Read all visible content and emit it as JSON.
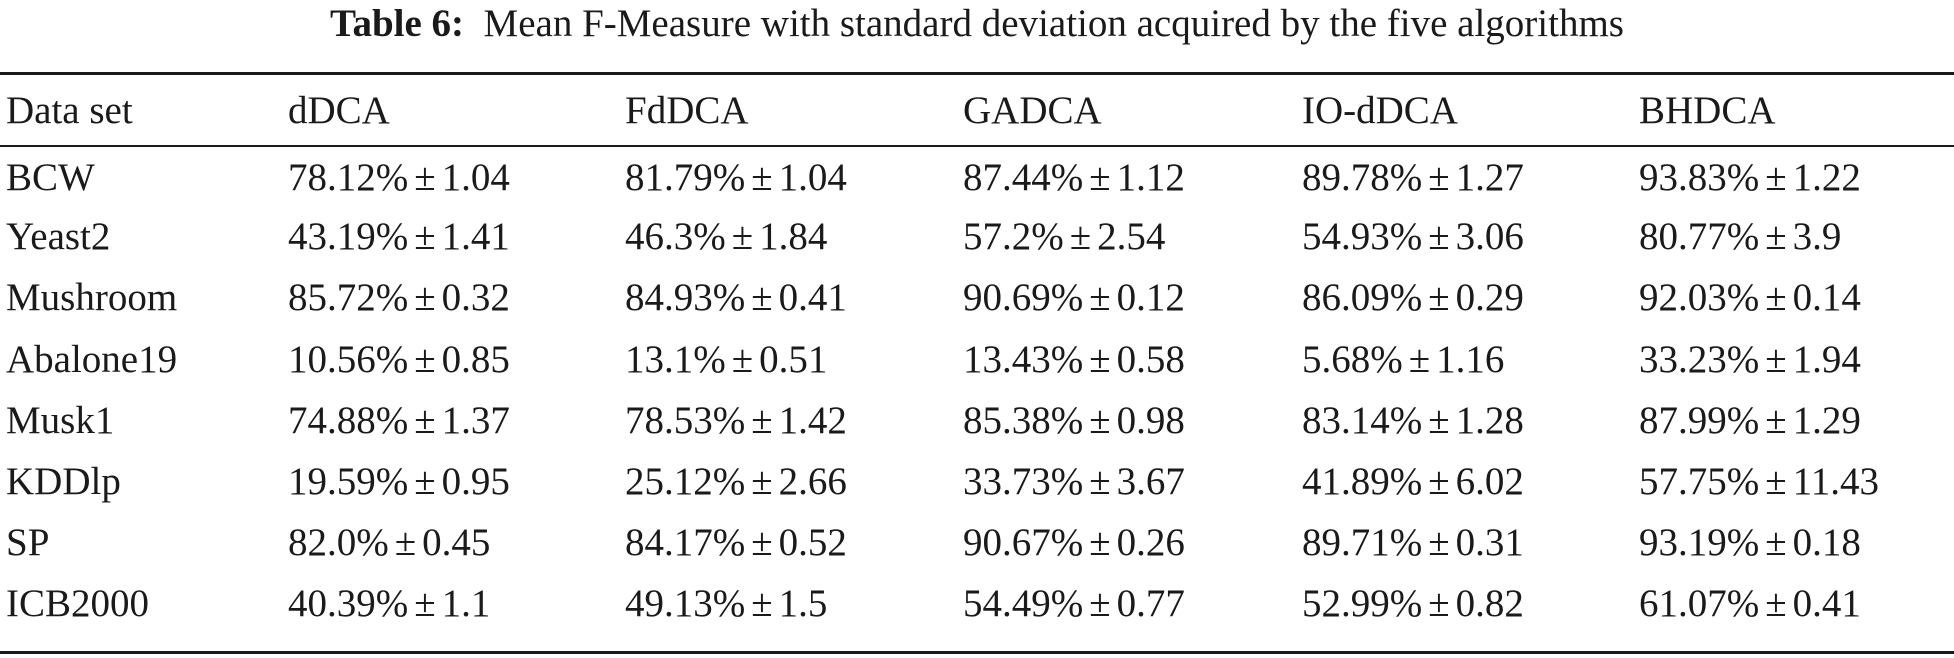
{
  "caption": {
    "label": "Table 6:",
    "text": "Mean F-Measure with standard deviation acquired by the five algorithms"
  },
  "table": {
    "headers": [
      "Data set",
      "dDCA",
      "FdDCA",
      "GADCA",
      "IO-dDCA",
      "BHDCA"
    ],
    "rows": [
      {
        "dataset": "BCW",
        "values": [
          [
            "78.12%",
            "1.04"
          ],
          [
            "81.79%",
            "1.04"
          ],
          [
            "87.44%",
            "1.12"
          ],
          [
            "89.78%",
            "1.27"
          ],
          [
            "93.83%",
            "1.22"
          ]
        ]
      },
      {
        "dataset": "Yeast2",
        "values": [
          [
            "43.19%",
            "1.41"
          ],
          [
            "46.3%",
            "1.84"
          ],
          [
            "57.2%",
            "2.54"
          ],
          [
            "54.93%",
            "3.06"
          ],
          [
            "80.77%",
            "3.9"
          ]
        ]
      },
      {
        "dataset": "Mushroom",
        "values": [
          [
            "85.72%",
            "0.32"
          ],
          [
            "84.93%",
            "0.41"
          ],
          [
            "90.69%",
            "0.12"
          ],
          [
            "86.09%",
            "0.29"
          ],
          [
            "92.03%",
            "0.14"
          ]
        ]
      },
      {
        "dataset": "Abalone19",
        "values": [
          [
            "10.56%",
            "0.85"
          ],
          [
            "13.1%",
            "0.51"
          ],
          [
            "13.43%",
            "0.58"
          ],
          [
            "5.68%",
            "1.16"
          ],
          [
            "33.23%",
            "1.94"
          ]
        ]
      },
      {
        "dataset": "Musk1",
        "values": [
          [
            "74.88%",
            "1.37"
          ],
          [
            "78.53%",
            "1.42"
          ],
          [
            "85.38%",
            "0.98"
          ],
          [
            "83.14%",
            "1.28"
          ],
          [
            "87.99%",
            "1.29"
          ]
        ]
      },
      {
        "dataset": "KDDlp",
        "values": [
          [
            "19.59%",
            "0.95"
          ],
          [
            "25.12%",
            "2.66"
          ],
          [
            "33.73%",
            "3.67"
          ],
          [
            "41.89%",
            "6.02"
          ],
          [
            "57.75%",
            "11.43"
          ]
        ]
      },
      {
        "dataset": "SP",
        "values": [
          [
            "82.0%",
            "0.45"
          ],
          [
            "84.17%",
            "0.52"
          ],
          [
            "90.67%",
            "0.26"
          ],
          [
            "89.71%",
            "0.31"
          ],
          [
            "93.19%",
            "0.18"
          ]
        ]
      },
      {
        "dataset": "ICB2000",
        "values": [
          [
            "40.39%",
            "1.1"
          ],
          [
            "49.13%",
            "1.5"
          ],
          [
            "54.49%",
            "0.77"
          ],
          [
            "52.99%",
            "0.82"
          ],
          [
            "61.07%",
            "0.41"
          ]
        ]
      }
    ],
    "bold_column_index": 5,
    "pm_symbol": "±"
  }
}
